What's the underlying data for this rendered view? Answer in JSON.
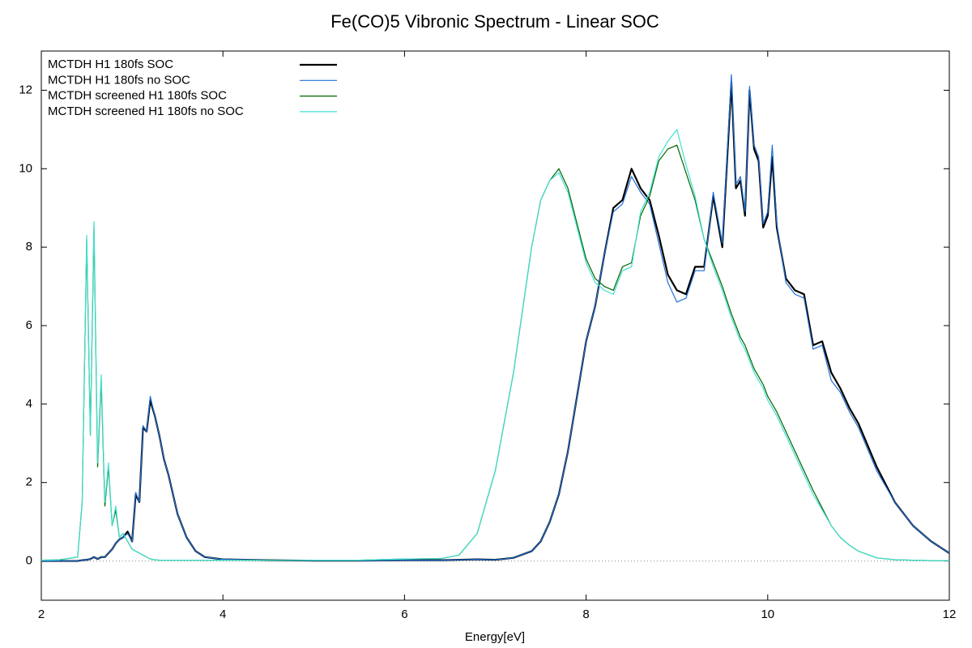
{
  "chart_data": {
    "type": "line",
    "title": "Fe(CO)5 Vibronic Spectrum - Linear SOC",
    "xlabel": "Energy[eV]",
    "xlim": [
      2,
      12
    ],
    "xticks": [
      2,
      4,
      6,
      8,
      10,
      12
    ],
    "ylim": [
      -1,
      13
    ],
    "yticks": [
      0,
      2,
      4,
      6,
      8,
      10,
      12
    ],
    "zeroaxis": true,
    "legend": "top-left",
    "x": [
      2.0,
      2.2,
      2.4,
      2.45,
      2.5,
      2.54,
      2.58,
      2.62,
      2.66,
      2.7,
      2.74,
      2.78,
      2.82,
      2.86,
      2.9,
      2.95,
      3.0,
      3.04,
      3.08,
      3.12,
      3.16,
      3.2,
      3.25,
      3.3,
      3.35,
      3.4,
      3.5,
      3.6,
      3.7,
      3.8,
      4.0,
      4.5,
      5.0,
      5.5,
      6.0,
      6.4,
      6.6,
      6.8,
      7.0,
      7.2,
      7.4,
      7.5,
      7.6,
      7.7,
      7.8,
      7.9,
      8.0,
      8.1,
      8.2,
      8.3,
      8.4,
      8.5,
      8.6,
      8.7,
      8.8,
      8.9,
      9.0,
      9.1,
      9.2,
      9.3,
      9.4,
      9.5,
      9.6,
      9.65,
      9.7,
      9.75,
      9.8,
      9.85,
      9.9,
      9.95,
      10.0,
      10.05,
      10.1,
      10.2,
      10.3,
      10.4,
      10.5,
      10.6,
      10.7,
      10.8,
      10.9,
      11.0,
      11.2,
      11.4,
      11.6,
      11.8,
      12.0
    ],
    "series": [
      {
        "name": "MCTDH H1 180fs SOC",
        "color": "#000000",
        "width": 2.2,
        "values": [
          0,
          0,
          0,
          0.02,
          0.03,
          0.05,
          0.1,
          0.05,
          0.1,
          0.1,
          0.2,
          0.3,
          0.45,
          0.55,
          0.6,
          0.75,
          0.5,
          1.7,
          1.5,
          3.4,
          3.3,
          4.1,
          3.7,
          3.2,
          2.6,
          2.2,
          1.2,
          0.6,
          0.25,
          0.1,
          0.04,
          0.02,
          0.01,
          0.01,
          0.02,
          0.02,
          0.03,
          0.04,
          0.03,
          0.08,
          0.25,
          0.5,
          1.0,
          1.7,
          2.8,
          4.2,
          5.6,
          6.5,
          7.8,
          9.0,
          9.2,
          10.0,
          9.5,
          9.2,
          8.3,
          7.3,
          6.9,
          6.8,
          7.5,
          7.5,
          9.3,
          8.0,
          12.2,
          9.5,
          9.7,
          8.8,
          12.0,
          10.5,
          10.2,
          8.5,
          8.8,
          10.3,
          8.5,
          7.2,
          6.9,
          6.8,
          5.5,
          5.6,
          4.8,
          4.4,
          3.9,
          3.5,
          2.4,
          1.5,
          0.9,
          0.5,
          0.2
        ]
      },
      {
        "name": "MCTDH H1 180fs no SOC",
        "color": "#1f6fd6",
        "width": 1.2,
        "values": [
          0,
          0,
          0,
          0.02,
          0.03,
          0.05,
          0.1,
          0.05,
          0.1,
          0.1,
          0.2,
          0.3,
          0.45,
          0.55,
          0.6,
          0.7,
          0.5,
          1.75,
          1.5,
          3.45,
          3.3,
          4.2,
          3.7,
          3.2,
          2.6,
          2.2,
          1.2,
          0.6,
          0.25,
          0.1,
          0.04,
          0.02,
          0.01,
          0.01,
          0.02,
          0.02,
          0.03,
          0.04,
          0.03,
          0.08,
          0.25,
          0.5,
          1.0,
          1.7,
          2.8,
          4.2,
          5.6,
          6.5,
          7.8,
          8.9,
          9.1,
          9.8,
          9.4,
          9.1,
          8.1,
          7.1,
          6.6,
          6.7,
          7.4,
          7.4,
          9.4,
          8.1,
          12.4,
          9.6,
          9.8,
          8.9,
          12.1,
          10.6,
          10.3,
          8.6,
          8.9,
          10.6,
          8.6,
          7.1,
          6.8,
          6.7,
          5.4,
          5.5,
          4.6,
          4.3,
          3.8,
          3.4,
          2.3,
          1.5,
          0.9,
          0.5,
          0.2
        ]
      },
      {
        "name": "MCTDH screened H1 180fs SOC",
        "color": "#006400",
        "width": 1.2,
        "values": [
          0.02,
          0.03,
          0.1,
          1.5,
          8.2,
          3.2,
          8.5,
          2.4,
          4.6,
          1.4,
          2.4,
          0.9,
          1.3,
          0.6,
          0.7,
          0.5,
          0.3,
          0.25,
          0.2,
          0.15,
          0.1,
          0.05,
          0.03,
          0.02,
          0.02,
          0.02,
          0.02,
          0.02,
          0.02,
          0.02,
          0.02,
          0.02,
          0.02,
          0.02,
          0.05,
          0.06,
          0.15,
          0.7,
          2.3,
          4.8,
          8.0,
          9.2,
          9.7,
          10.0,
          9.5,
          8.6,
          7.7,
          7.2,
          7.0,
          6.9,
          7.5,
          7.6,
          8.8,
          9.3,
          10.2,
          10.5,
          10.6,
          9.9,
          9.2,
          8.2,
          7.6,
          7.0,
          6.3,
          6.0,
          5.7,
          5.5,
          5.2,
          4.9,
          4.7,
          4.5,
          4.2,
          4.0,
          3.8,
          3.3,
          2.8,
          2.3,
          1.8,
          1.35,
          0.9,
          0.6,
          0.4,
          0.25,
          0.08,
          0.03,
          0.02,
          0.01,
          0.01
        ]
      },
      {
        "name": "MCTDH screened H1 180fs no SOC",
        "color": "#40e0d0",
        "width": 1.2,
        "values": [
          0.02,
          0.03,
          0.1,
          1.5,
          8.3,
          3.2,
          8.65,
          2.5,
          4.75,
          1.5,
          2.5,
          0.9,
          1.4,
          0.6,
          0.7,
          0.5,
          0.3,
          0.25,
          0.2,
          0.15,
          0.1,
          0.05,
          0.03,
          0.02,
          0.02,
          0.02,
          0.02,
          0.02,
          0.02,
          0.02,
          0.02,
          0.02,
          0.02,
          0.02,
          0.05,
          0.06,
          0.15,
          0.7,
          2.3,
          4.8,
          8.0,
          9.2,
          9.7,
          9.9,
          9.4,
          8.5,
          7.6,
          7.1,
          6.9,
          6.8,
          7.4,
          7.5,
          8.9,
          9.4,
          10.3,
          10.7,
          11.0,
          10.1,
          9.3,
          8.2,
          7.5,
          6.9,
          6.2,
          5.9,
          5.6,
          5.4,
          5.1,
          4.8,
          4.6,
          4.4,
          4.1,
          3.9,
          3.7,
          3.2,
          2.7,
          2.2,
          1.7,
          1.3,
          0.9,
          0.6,
          0.4,
          0.25,
          0.08,
          0.03,
          0.02,
          0.01,
          0.01
        ]
      }
    ]
  }
}
